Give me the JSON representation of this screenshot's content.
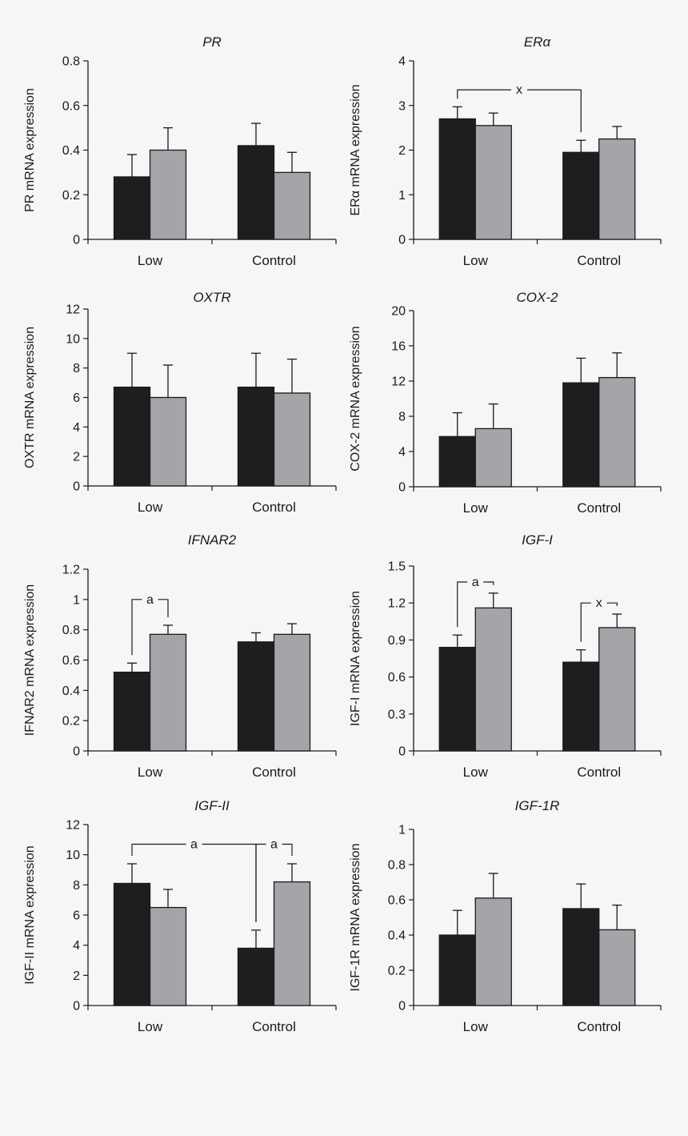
{
  "figure": {
    "series_colors": {
      "dark": "#1e1e1e",
      "light": "#a4a5a9"
    },
    "background": "#f6f6f6"
  },
  "chart_data": [
    {
      "type": "bar",
      "id": "pr",
      "title": "PR",
      "ylabel": "PR mRNA expression",
      "categories": [
        "Low",
        "Control"
      ],
      "ylim": [
        0,
        0.8
      ],
      "yticks": [
        "0",
        "0.2",
        "0.4",
        "0.6",
        "0.8"
      ],
      "series": [
        {
          "values": [
            0.28,
            0.42
          ],
          "errors": [
            0.1,
            0.1
          ]
        },
        {
          "values": [
            0.4,
            0.3
          ],
          "errors": [
            0.1,
            0.09
          ]
        }
      ],
      "annotations": []
    },
    {
      "type": "bar",
      "id": "era",
      "title": "ERα",
      "ylabel": "ERα mRNA expression",
      "categories": [
        "Low",
        "Control"
      ],
      "ylim": [
        0,
        4
      ],
      "yticks": [
        "0",
        "1",
        "2",
        "3",
        "4"
      ],
      "series": [
        {
          "values": [
            2.7,
            1.95
          ],
          "errors": [
            0.27,
            0.27
          ]
        },
        {
          "values": [
            2.55,
            2.25
          ],
          "errors": [
            0.28,
            0.28
          ]
        }
      ],
      "annotations": [
        {
          "label": "x",
          "from": [
            0,
            0
          ],
          "to": [
            1,
            0
          ],
          "level": 3.35
        }
      ]
    },
    {
      "type": "bar",
      "id": "oxtr",
      "title": "OXTR",
      "ylabel": "OXTR mRNA expression",
      "categories": [
        "Low",
        "Control"
      ],
      "ylim": [
        0,
        12
      ],
      "yticks": [
        "0",
        "2",
        "4",
        "6",
        "8",
        "10",
        "12"
      ],
      "series": [
        {
          "values": [
            6.7,
            6.7
          ],
          "errors": [
            2.3,
            2.3
          ]
        },
        {
          "values": [
            6.0,
            6.3
          ],
          "errors": [
            2.2,
            2.3
          ]
        }
      ],
      "annotations": []
    },
    {
      "type": "bar",
      "id": "cox2",
      "title": "COX-2",
      "ylabel": "COX-2 mRNA expression",
      "categories": [
        "Low",
        "Control"
      ],
      "ylim": [
        0,
        20
      ],
      "yticks": [
        "0",
        "4",
        "8",
        "12",
        "16",
        "20"
      ],
      "series": [
        {
          "values": [
            5.7,
            11.8
          ],
          "errors": [
            2.7,
            2.8
          ]
        },
        {
          "values": [
            6.6,
            12.4
          ],
          "errors": [
            2.8,
            2.8
          ]
        }
      ],
      "annotations": []
    },
    {
      "type": "bar",
      "id": "ifnar2",
      "title": "IFNAR2",
      "ylabel": "IFNAR2 mRNA expression",
      "categories": [
        "Low",
        "Control"
      ],
      "ylim": [
        0,
        1.2
      ],
      "yticks": [
        "0",
        "0.2",
        "0.4",
        "0.6",
        "0.8",
        "1",
        "1.2"
      ],
      "series": [
        {
          "values": [
            0.52,
            0.72
          ],
          "errors": [
            0.06,
            0.06
          ]
        },
        {
          "values": [
            0.77,
            0.77
          ],
          "errors": [
            0.06,
            0.07
          ]
        }
      ],
      "annotations": [
        {
          "label": "a",
          "from": [
            0,
            0
          ],
          "to": [
            0,
            1
          ],
          "level": 1.0
        }
      ]
    },
    {
      "type": "bar",
      "id": "igf1",
      "title": "IGF-I",
      "ylabel": "IGF-I mRNA expression",
      "categories": [
        "Low",
        "Control"
      ],
      "ylim": [
        0,
        1.5
      ],
      "yticks": [
        "0",
        "0.3",
        "0.6",
        "0.9",
        "1.2",
        "1.5"
      ],
      "series": [
        {
          "values": [
            0.84,
            0.72
          ],
          "errors": [
            0.1,
            0.1
          ]
        },
        {
          "values": [
            1.16,
            1.0
          ],
          "errors": [
            0.12,
            0.11
          ]
        }
      ],
      "annotations": [
        {
          "label": "a",
          "from": [
            0,
            0
          ],
          "to": [
            0,
            1
          ],
          "level": 1.37
        },
        {
          "label": "x",
          "from": [
            1,
            0
          ],
          "to": [
            1,
            1
          ],
          "level": 1.2
        }
      ]
    },
    {
      "type": "bar",
      "id": "igf2",
      "title": "IGF-II",
      "ylabel": "IGF-II mRNA expression",
      "categories": [
        "Low",
        "Control"
      ],
      "ylim": [
        0,
        12
      ],
      "yticks": [
        "0",
        "2",
        "4",
        "6",
        "8",
        "10",
        "12"
      ],
      "series": [
        {
          "values": [
            8.1,
            3.8
          ],
          "errors": [
            1.3,
            1.2
          ]
        },
        {
          "values": [
            6.5,
            8.2
          ],
          "errors": [
            1.2,
            1.2
          ]
        }
      ],
      "annotations": [
        {
          "label": "a",
          "from": [
            0,
            0
          ],
          "to": [
            1,
            0
          ],
          "level": 10.7
        },
        {
          "label": "a",
          "from": [
            1,
            0
          ],
          "to": [
            1,
            1
          ],
          "level": 10.7
        }
      ]
    },
    {
      "type": "bar",
      "id": "igf1r",
      "title": "IGF-1R",
      "ylabel": "IGF-1R mRNA expression",
      "categories": [
        "Low",
        "Control"
      ],
      "ylim": [
        0,
        1
      ],
      "yticks": [
        "0",
        "0.2",
        "0.4",
        "0.6",
        "0.8",
        "1"
      ],
      "series": [
        {
          "values": [
            0.4,
            0.55
          ],
          "errors": [
            0.14,
            0.14
          ]
        },
        {
          "values": [
            0.61,
            0.43
          ],
          "errors": [
            0.14,
            0.14
          ]
        }
      ],
      "annotations": []
    }
  ]
}
